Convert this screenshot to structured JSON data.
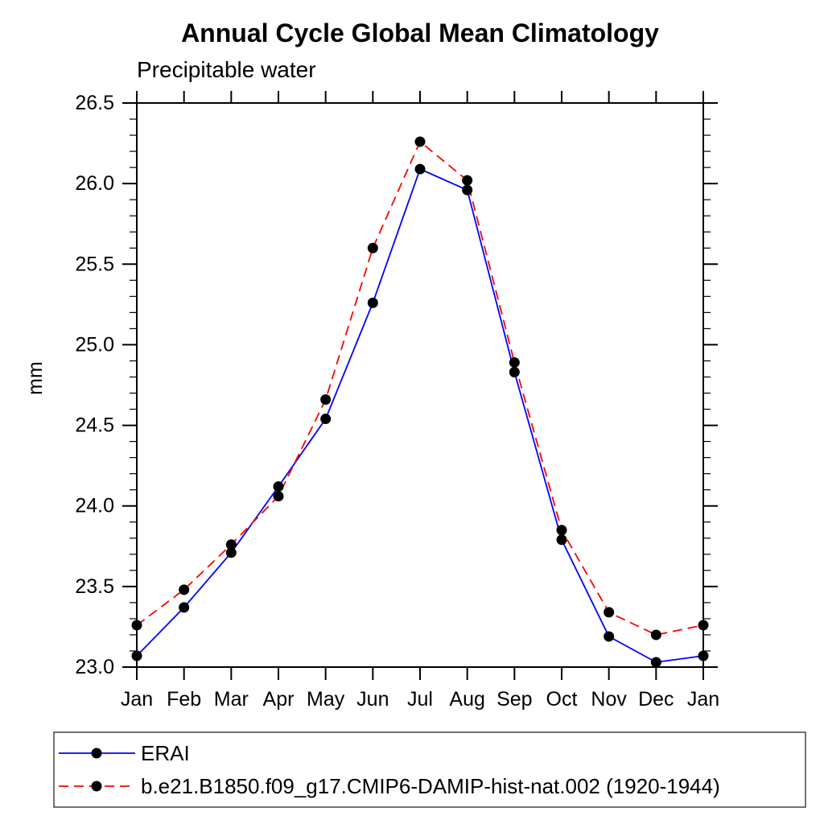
{
  "page": {
    "background": "#ffffff",
    "text_color": "#000000"
  },
  "chart_data": {
    "type": "line",
    "title": "Annual Cycle Global Mean Climatology",
    "subtitle": "Precipitable water",
    "ylabel": "mm",
    "xlabel": "",
    "categories": [
      "Jan",
      "Feb",
      "Mar",
      "Apr",
      "May",
      "Jun",
      "Jul",
      "Aug",
      "Sep",
      "Oct",
      "Nov",
      "Dec",
      "Jan"
    ],
    "ylim": [
      23.0,
      26.5
    ],
    "ytick_major": 0.5,
    "ytick_minor": 0.1,
    "grid": false,
    "legend_position": "bottom-left-box",
    "marker": "filled-circle",
    "marker_color": "#000000",
    "series": [
      {
        "name": "ERAI",
        "color": "#0000ff",
        "line_style": "solid",
        "values": [
          23.07,
          23.37,
          23.71,
          24.12,
          24.54,
          25.26,
          26.09,
          25.96,
          24.83,
          23.79,
          23.19,
          23.03,
          23.07
        ]
      },
      {
        "name": "b.e21.B1850.f09_g17.CMIP6-DAMIP-hist-nat.002 (1920-1944)",
        "color": "#ff0000",
        "line_style": "dashed",
        "values": [
          23.26,
          23.48,
          23.76,
          24.06,
          24.66,
          25.6,
          26.26,
          26.02,
          24.89,
          23.85,
          23.34,
          23.2,
          23.26
        ]
      }
    ]
  }
}
